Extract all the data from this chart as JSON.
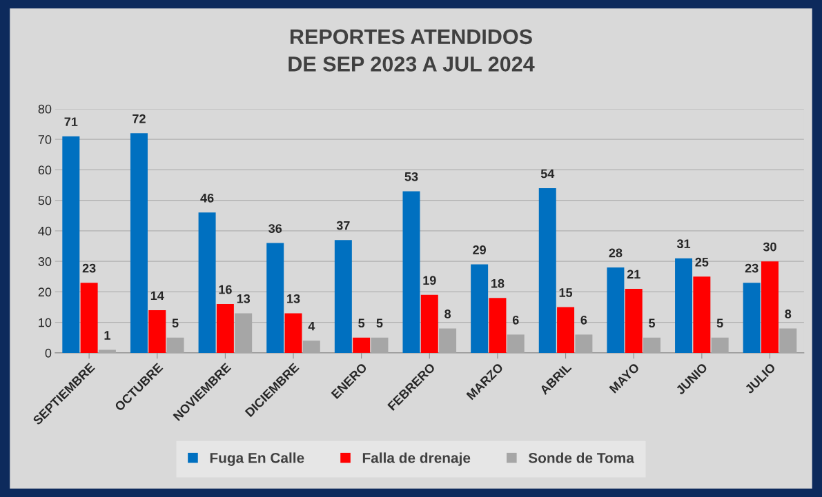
{
  "chart_data": {
    "type": "bar",
    "title": "REPORTES ATENDIDOS\nDE SEP 2023 A JUL 2024",
    "categories": [
      "SEPTIEMBRE",
      "OCTUBRE",
      "NOVIEMBRE",
      "DICIEMBRE",
      "ENERO",
      "FEBRERO",
      "MARZO",
      "ABRIL",
      "MAYO",
      "JUNIO",
      "JULIO"
    ],
    "series": [
      {
        "name": "Fuga En Calle",
        "color": "#0070c0",
        "values": [
          71,
          72,
          46,
          36,
          37,
          53,
          29,
          54,
          28,
          31,
          23
        ]
      },
      {
        "name": "Falla de drenaje",
        "color": "#ff0000",
        "values": [
          23,
          14,
          16,
          13,
          5,
          19,
          18,
          15,
          21,
          25,
          30
        ]
      },
      {
        "name": "Sonde de Toma",
        "color": "#a6a6a6",
        "values": [
          1,
          5,
          13,
          4,
          5,
          8,
          6,
          6,
          5,
          5,
          8
        ]
      }
    ],
    "ylim": [
      0,
      80
    ],
    "yticks": [
      0,
      10,
      20,
      30,
      40,
      50,
      60,
      70,
      80
    ],
    "grid": "y",
    "legend": "bottom",
    "data_labels": true
  }
}
